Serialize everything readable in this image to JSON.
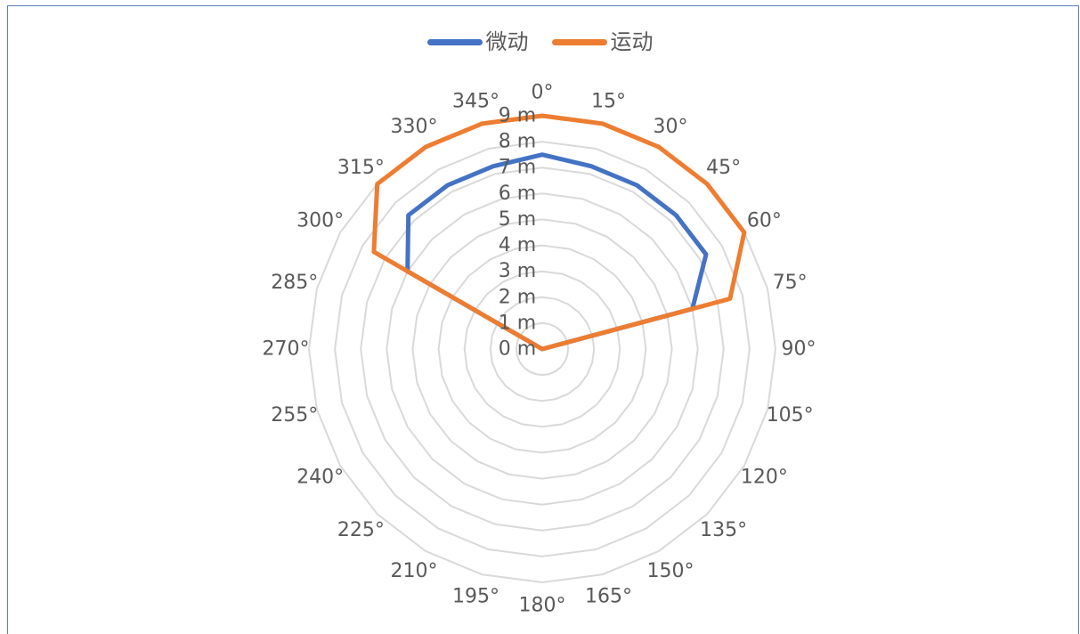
{
  "chart_data": {
    "type": "radar",
    "categories": [
      "0°",
      "15°",
      "30°",
      "45°",
      "60°",
      "75°",
      "90°",
      "105°",
      "120°",
      "135°",
      "150°",
      "165°",
      "180°",
      "195°",
      "210°",
      "225°",
      "240°",
      "255°",
      "270°",
      "285°",
      "300°",
      "315°",
      "330°",
      "345°"
    ],
    "radial_ticks": [
      "0 m",
      "1 m",
      "2 m",
      "3 m",
      "4 m",
      "5 m",
      "6 m",
      "7 m",
      "8 m",
      "9 m"
    ],
    "rlim": [
      0,
      9
    ],
    "grid": true,
    "legend_position": "top",
    "series": [
      {
        "name": "微动",
        "color": "#4472c4",
        "values": [
          7.5,
          7.3,
          7.3,
          7.3,
          7.3,
          6.0,
          0,
          0,
          0,
          0,
          0,
          0,
          0,
          0,
          0,
          0,
          0,
          0,
          0,
          0,
          6.0,
          7.3,
          7.3,
          7.3
        ]
      },
      {
        "name": "运动",
        "color": "#ed7d31",
        "values": [
          9.0,
          9.0,
          9.0,
          9.0,
          9.0,
          7.5,
          0,
          0,
          0,
          0,
          0,
          0,
          0,
          0,
          0,
          0,
          0,
          0,
          0,
          0,
          7.5,
          9.0,
          9.0,
          9.0
        ]
      }
    ]
  }
}
